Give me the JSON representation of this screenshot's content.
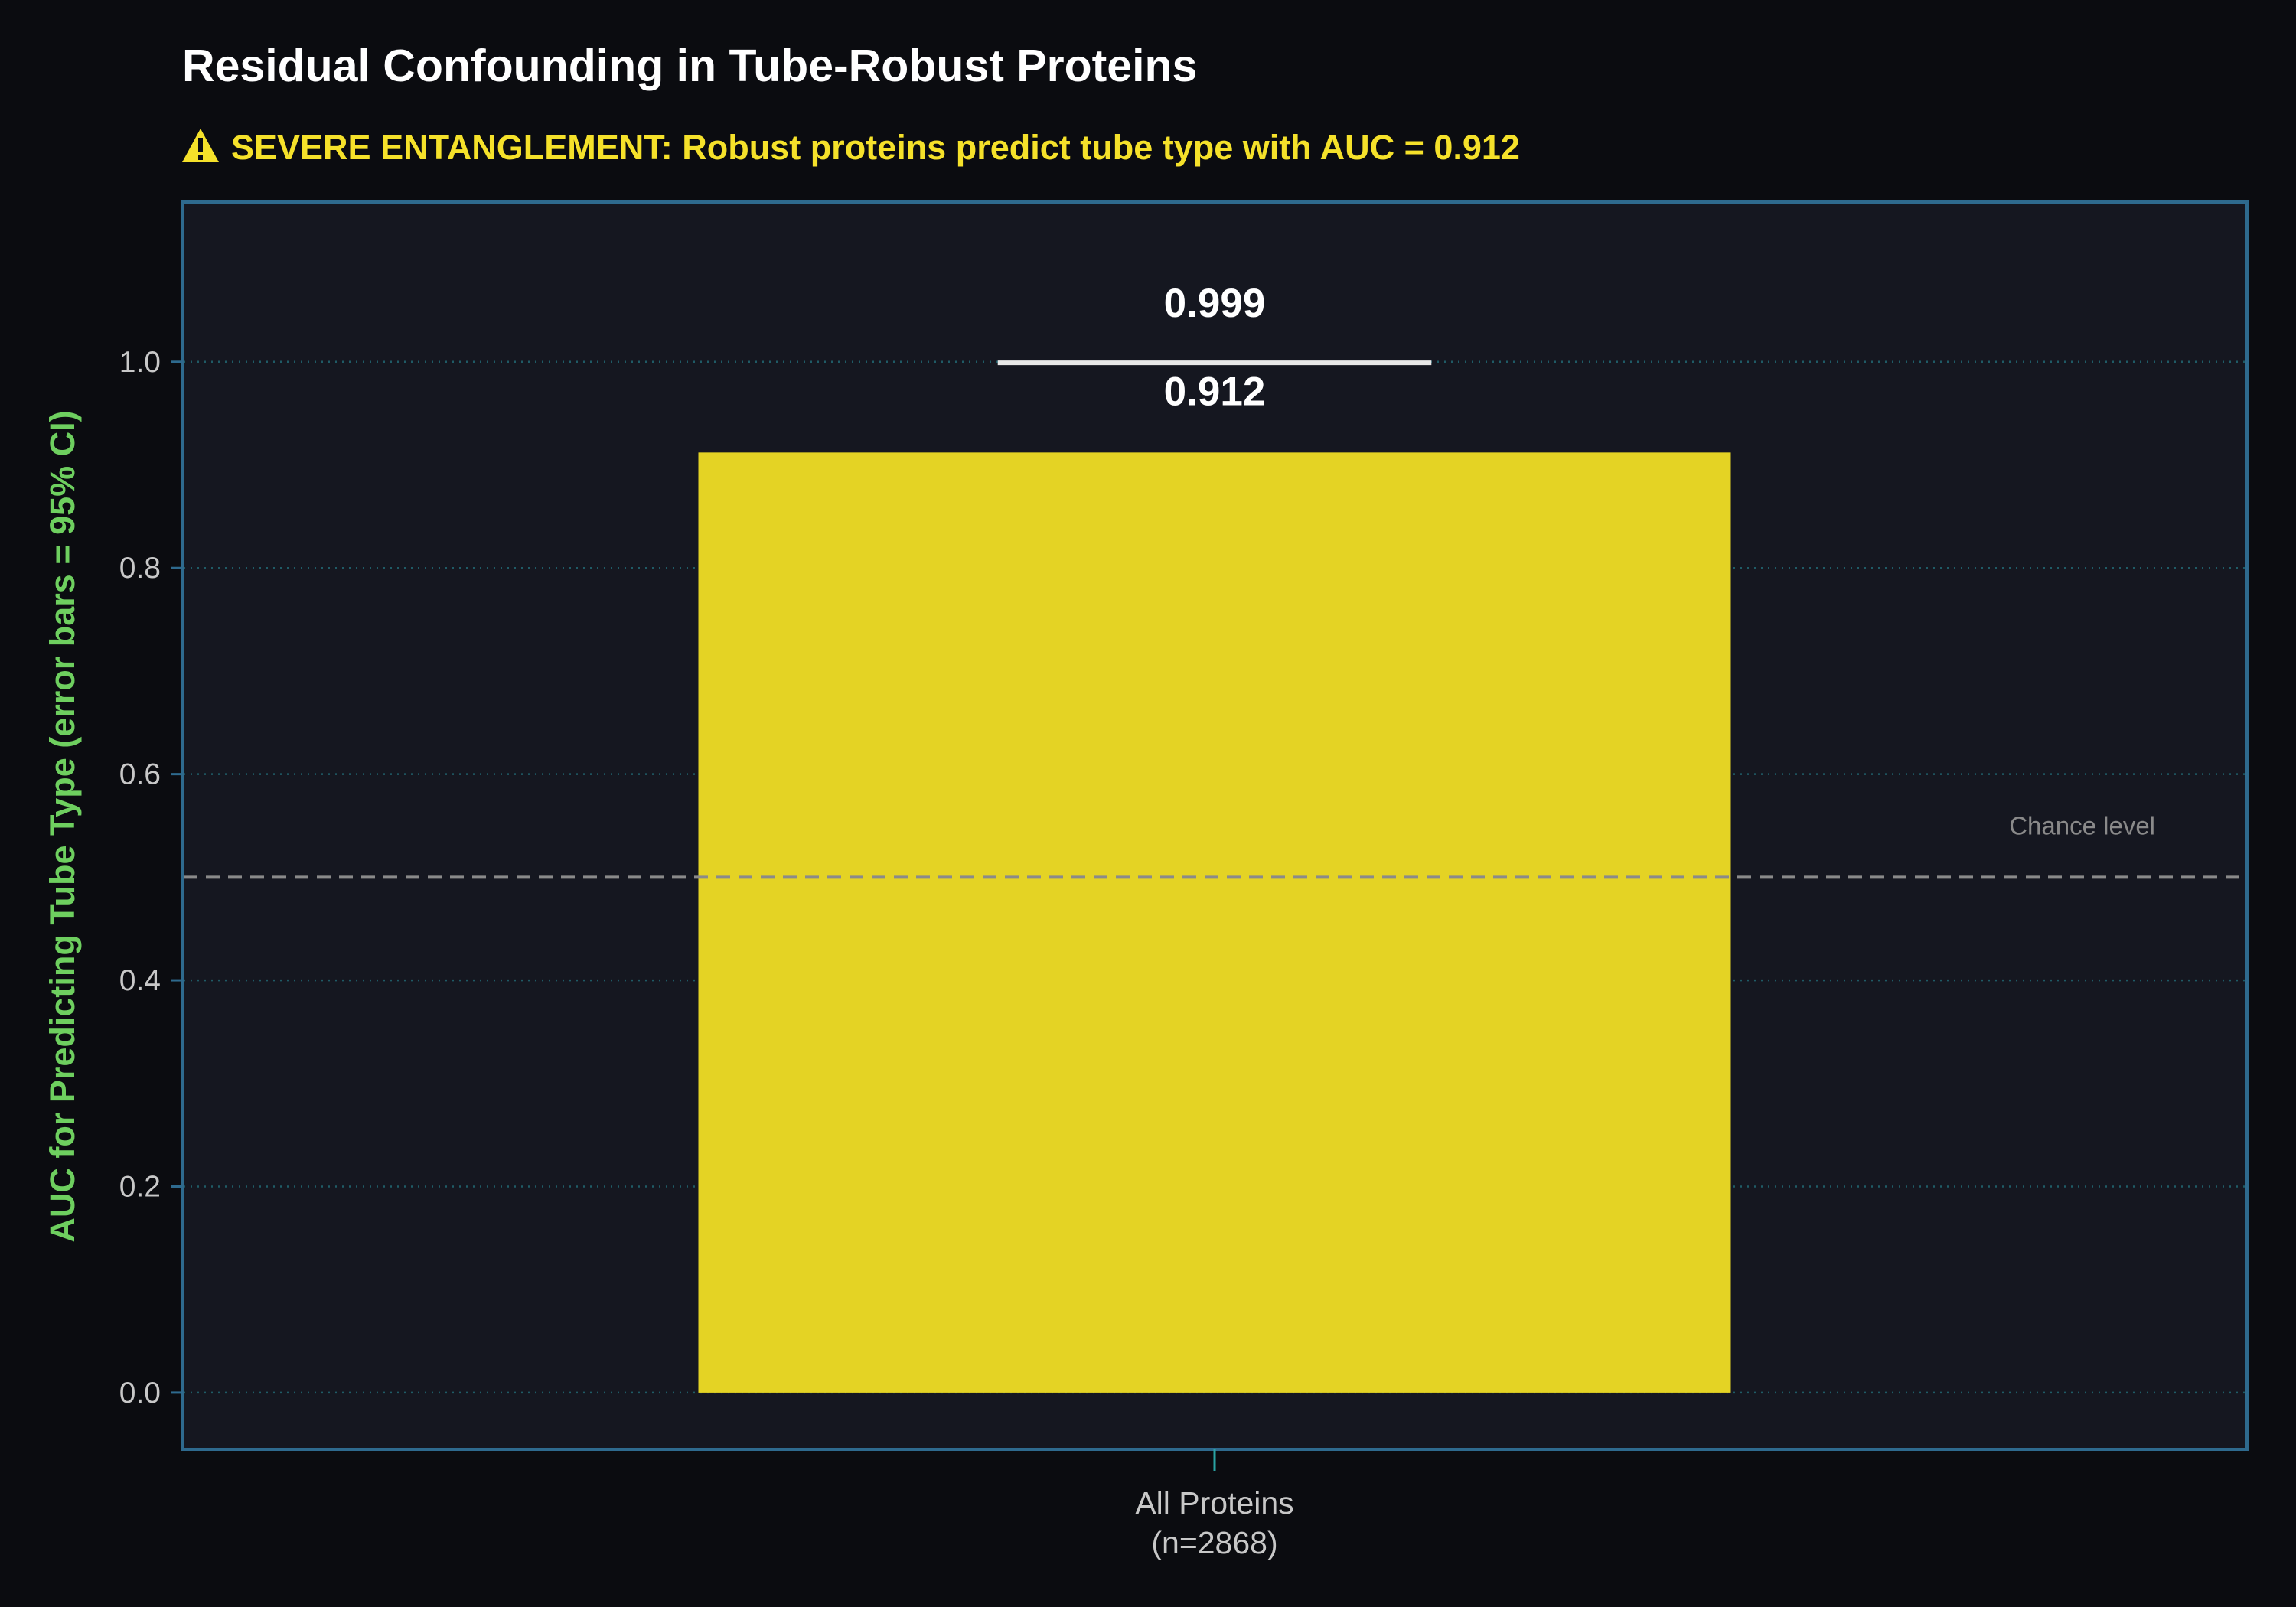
{
  "chart_data": {
    "type": "bar",
    "title": "Residual Confounding in Tube-Robust Proteins",
    "subtitle_icon": "warning-icon",
    "subtitle": "SEVERE ENTANGLEMENT: Robust proteins predict tube type with AUC = 0.912",
    "ylabel": "AUC for Predicting Tube Type (error bars = 95% CI)",
    "xlabel": "",
    "categories": [
      "All Proteins\n(n=2868)"
    ],
    "category_lines": [
      [
        "All Proteins",
        "(n=2868)"
      ]
    ],
    "values": [
      0.912
    ],
    "value_labels": [
      "0.912"
    ],
    "error_upper": [
      0.999
    ],
    "error_upper_labels": [
      "0.999"
    ],
    "ylim": [
      -0.055,
      1.155
    ],
    "yticks": [
      0.0,
      0.2,
      0.4,
      0.6,
      0.8,
      1.0
    ],
    "ytick_labels": [
      "0.0",
      "0.2",
      "0.4",
      "0.6",
      "0.8",
      "1.0"
    ],
    "reference_line": {
      "value": 0.5,
      "label": "Chance level",
      "style": "dashed"
    },
    "grid": "horizontal dotted",
    "colors": {
      "background": "#0b0c10",
      "plot_background": "#151720",
      "plot_border": "#2e6a8e",
      "bar": "#e4d324",
      "grid": "#1f5b66",
      "title": "#ffffff",
      "subtitle": "#f5e12a",
      "ylabel": "#6ecf5f",
      "error_bar": "#e8e8e8",
      "reference_line": "#8a8a8a"
    }
  }
}
